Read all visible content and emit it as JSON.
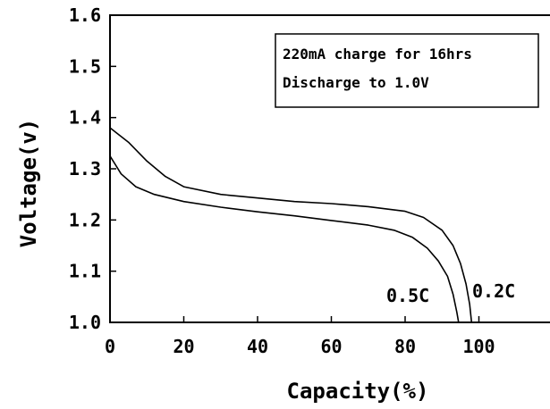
{
  "chart_data": {
    "type": "line",
    "xlabel": "Capacity(%)",
    "ylabel": "Voltage(v)",
    "xlim": [
      0,
      120
    ],
    "ylim": [
      1.0,
      1.6
    ],
    "xticks": [
      0,
      20,
      40,
      60,
      80,
      100
    ],
    "yticks": [
      1.0,
      1.1,
      1.2,
      1.3,
      1.4,
      1.5,
      1.6
    ],
    "xtick_labels": [
      "0",
      "20",
      "40",
      "60",
      "80",
      "100"
    ],
    "ytick_labels": [
      "1.0",
      "1.1",
      "1.2",
      "1.3",
      "1.4",
      "1.5",
      "1.6"
    ],
    "grid": false,
    "annotation_box": {
      "lines": [
        "220mA charge for 16hrs",
        "Discharge to 1.0V"
      ]
    },
    "series": [
      {
        "name": "0.2C",
        "color": "#000000",
        "points": [
          [
            0,
            1.38
          ],
          [
            5,
            1.352
          ],
          [
            10,
            1.315
          ],
          [
            15,
            1.285
          ],
          [
            20,
            1.265
          ],
          [
            30,
            1.25
          ],
          [
            40,
            1.243
          ],
          [
            50,
            1.236
          ],
          [
            60,
            1.232
          ],
          [
            70,
            1.226
          ],
          [
            80,
            1.217
          ],
          [
            85,
            1.205
          ],
          [
            90,
            1.18
          ],
          [
            93,
            1.15
          ],
          [
            95,
            1.115
          ],
          [
            96.5,
            1.075
          ],
          [
            97.5,
            1.035
          ],
          [
            98,
            1.0
          ]
        ]
      },
      {
        "name": "0.5C",
        "color": "#000000",
        "points": [
          [
            0,
            1.325
          ],
          [
            3,
            1.29
          ],
          [
            7,
            1.265
          ],
          [
            12,
            1.25
          ],
          [
            20,
            1.236
          ],
          [
            30,
            1.225
          ],
          [
            40,
            1.216
          ],
          [
            50,
            1.208
          ],
          [
            60,
            1.199
          ],
          [
            70,
            1.19
          ],
          [
            77,
            1.18
          ],
          [
            82,
            1.166
          ],
          [
            86,
            1.145
          ],
          [
            89,
            1.12
          ],
          [
            91.5,
            1.09
          ],
          [
            93,
            1.055
          ],
          [
            94,
            1.02
          ],
          [
            94.5,
            1.0
          ]
        ]
      }
    ]
  }
}
